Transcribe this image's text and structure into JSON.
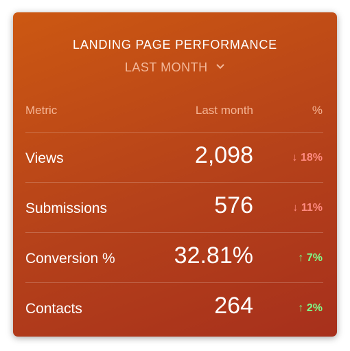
{
  "header": {
    "title": "LANDING PAGE PERFORMANCE",
    "period": "LAST MONTH"
  },
  "table": {
    "columns": [
      "Metric",
      "Last month",
      "%"
    ],
    "rows": [
      {
        "metric": "Views",
        "value": "2,098",
        "change": "↓ 18%",
        "color": "#ff8a80"
      },
      {
        "metric": "Submissions",
        "value": "576",
        "change": "↓ 11%",
        "color": "#ff8a80"
      },
      {
        "metric": "Conversion %",
        "value": "32.81%",
        "change": "↑ 7%",
        "color": "#7dff8a"
      },
      {
        "metric": "Contacts",
        "value": "264",
        "change": "↑ 2%",
        "color": "#7dff8a"
      }
    ]
  }
}
